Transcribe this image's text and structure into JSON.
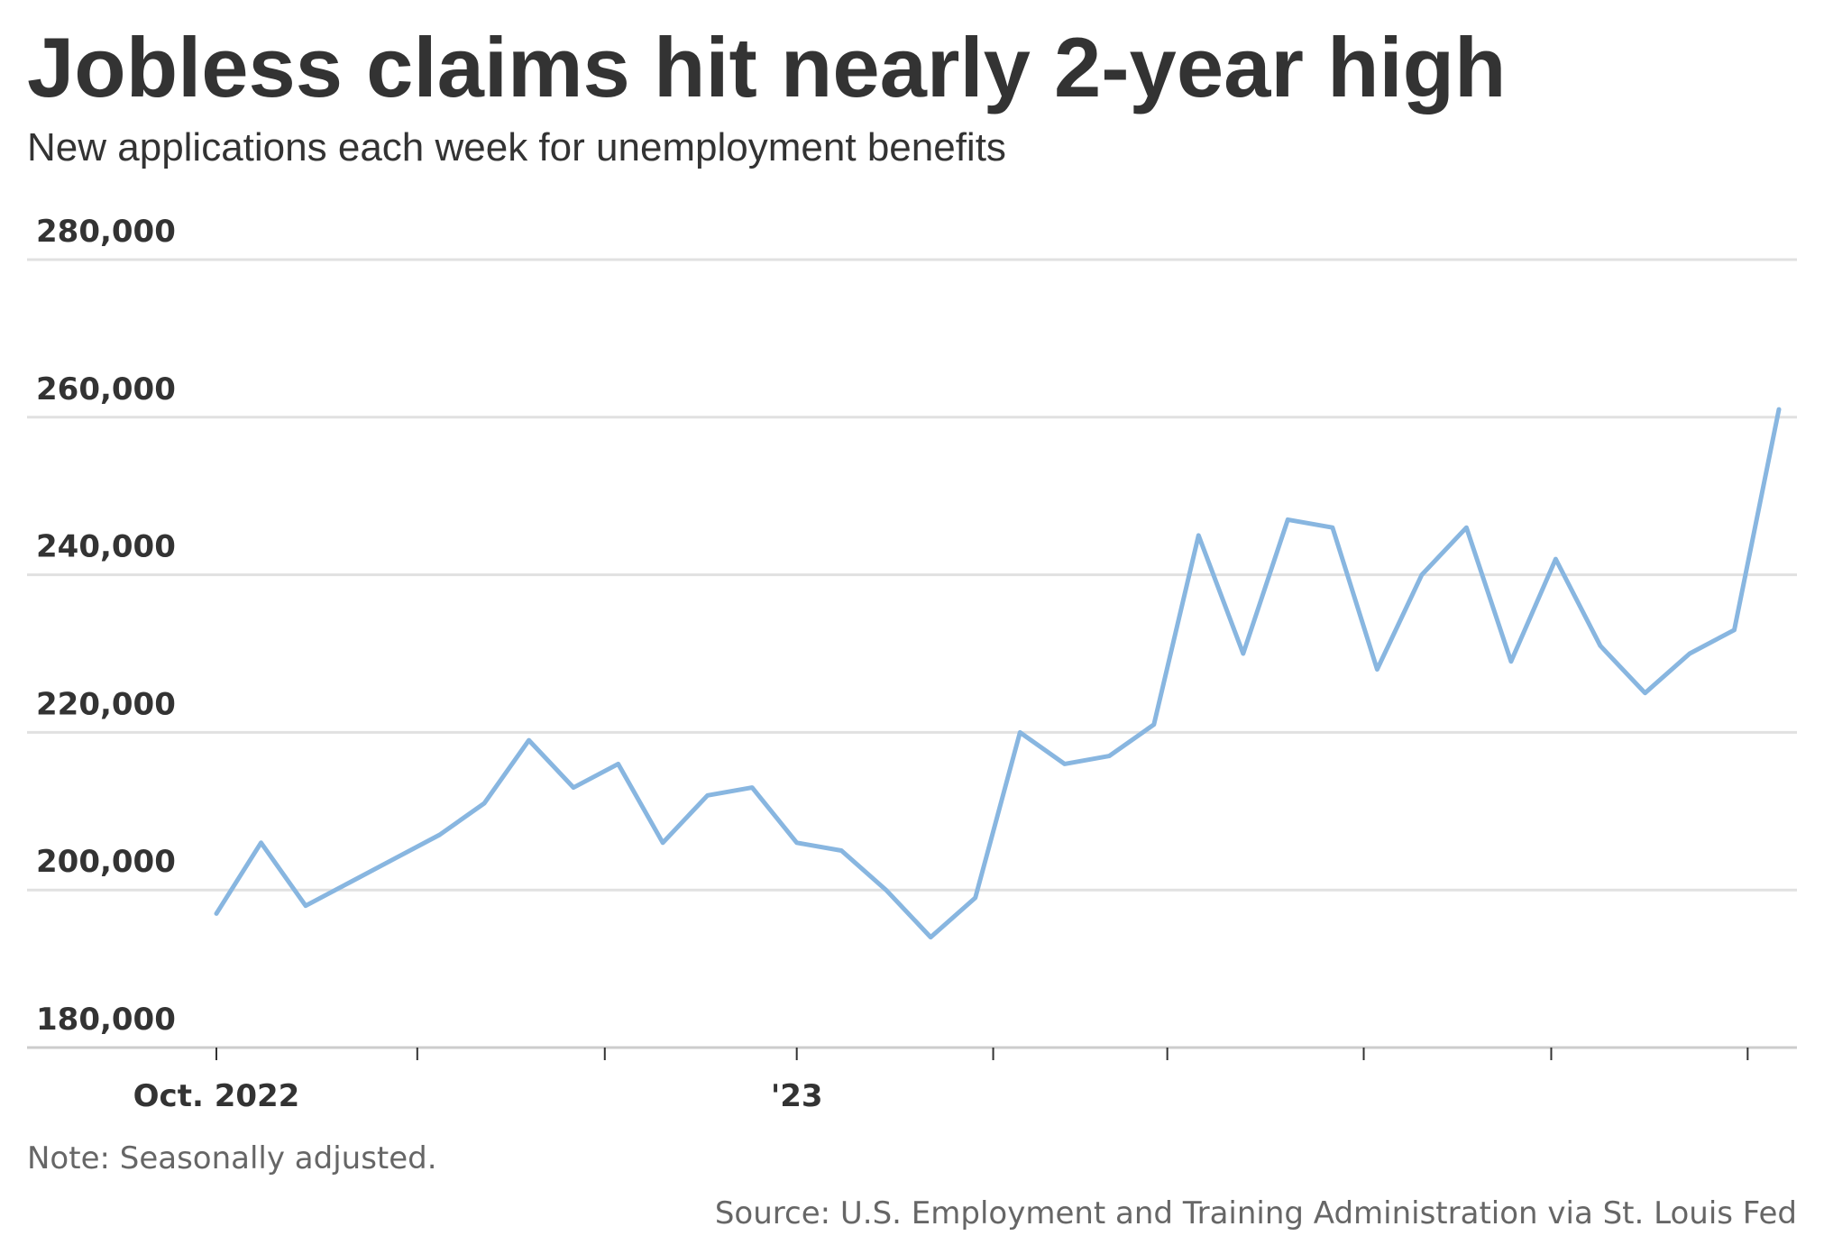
{
  "header": {
    "title": "Jobless claims hit nearly 2-year high",
    "subtitle": "New applications each week for unemployment benefits"
  },
  "footer": {
    "note": "Note: Seasonally adjusted.",
    "source": "Source: U.S. Employment and Training Administration via St. Louis Fed"
  },
  "colors": {
    "line": "#88b6e0",
    "grid": "#e1e1e1",
    "axis": "#cccccc",
    "text": "#333333",
    "muted": "#666666"
  },
  "chart_data": {
    "type": "line",
    "title": "Jobless claims hit nearly 2-year high",
    "subtitle": "New applications each week for unemployment benefits",
    "xlabel": "",
    "ylabel": "",
    "ylim": [
      180000,
      280000
    ],
    "yticks": [
      180000,
      200000,
      220000,
      240000,
      260000,
      280000
    ],
    "ytick_labels": [
      "180,000",
      "200,000",
      "220,000",
      "240,000",
      "260,000",
      "280,000"
    ],
    "xtick_labels": [
      {
        "label": "Oct. 2022",
        "week": 0
      },
      {
        "label": "'23",
        "week": 13
      }
    ],
    "xtick_marks": [
      0,
      4.5,
      8.7,
      13,
      17.4,
      21.3,
      25.7,
      29.9,
      34.3
    ],
    "grid": true,
    "legend": "none",
    "series": [
      {
        "values": [
          197000,
          206000,
          198000,
          201000,
          204000,
          207000,
          211000,
          219000,
          213000,
          216000,
          206000,
          212000,
          213000,
          206000,
          205000,
          200000,
          194000,
          199000,
          220000,
          216000,
          217000,
          221000,
          245000,
          230000,
          247000,
          246000,
          228000,
          240000,
          246000,
          229000,
          242000,
          231000,
          225000,
          230000,
          233000,
          261000
        ]
      }
    ]
  }
}
